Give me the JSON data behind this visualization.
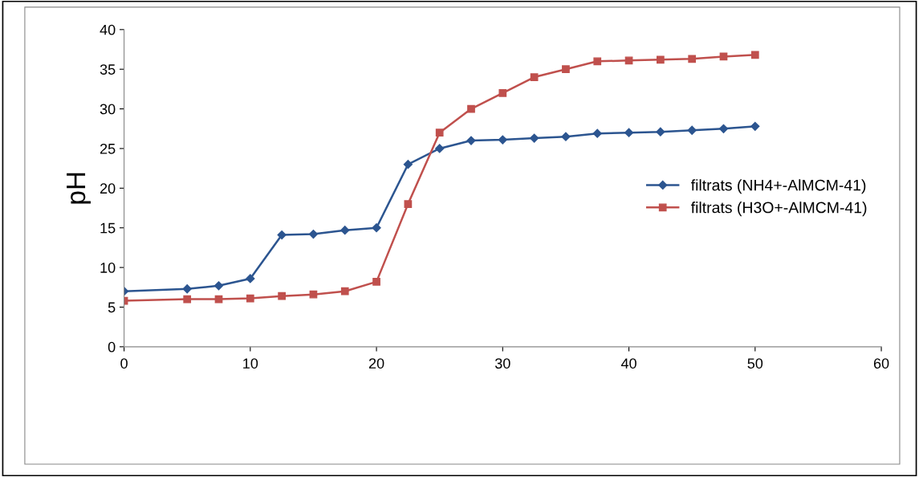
{
  "chart_data": {
    "type": "line",
    "ylabel": "pH",
    "x": [
      0,
      5,
      7.5,
      10,
      12.5,
      15,
      17.5,
      20,
      22.5,
      25,
      27.5,
      30,
      32.5,
      35,
      37.5,
      40,
      42.5,
      45,
      47.5,
      50
    ],
    "series": [
      {
        "name": "filtrats (NH4+-AlMCM-41)",
        "color": "#2c5590",
        "marker": "diamond",
        "values": [
          7.0,
          7.3,
          7.7,
          8.6,
          14.1,
          14.2,
          14.7,
          15.0,
          23.0,
          25.0,
          26.0,
          26.1,
          26.3,
          26.5,
          26.9,
          27.0,
          27.1,
          27.3,
          27.5,
          27.8
        ]
      },
      {
        "name": "filtrats (H3O+-AlMCM-41)",
        "color": "#c0504d",
        "marker": "square",
        "values": [
          5.8,
          6.0,
          6.0,
          6.1,
          6.4,
          6.6,
          7.0,
          8.2,
          18.0,
          27.0,
          30.0,
          32.0,
          34.0,
          35.0,
          36.0,
          36.1,
          36.2,
          36.3,
          36.6,
          36.8
        ]
      }
    ],
    "xlim": [
      0,
      60
    ],
    "xticks": [
      0,
      10,
      20,
      30,
      40,
      50,
      60
    ],
    "ylim": [
      0,
      40
    ],
    "yticks": [
      0,
      5,
      10,
      15,
      20,
      25,
      30,
      35,
      40
    ],
    "grid": false,
    "legend": "right",
    "line_style": "solid"
  }
}
